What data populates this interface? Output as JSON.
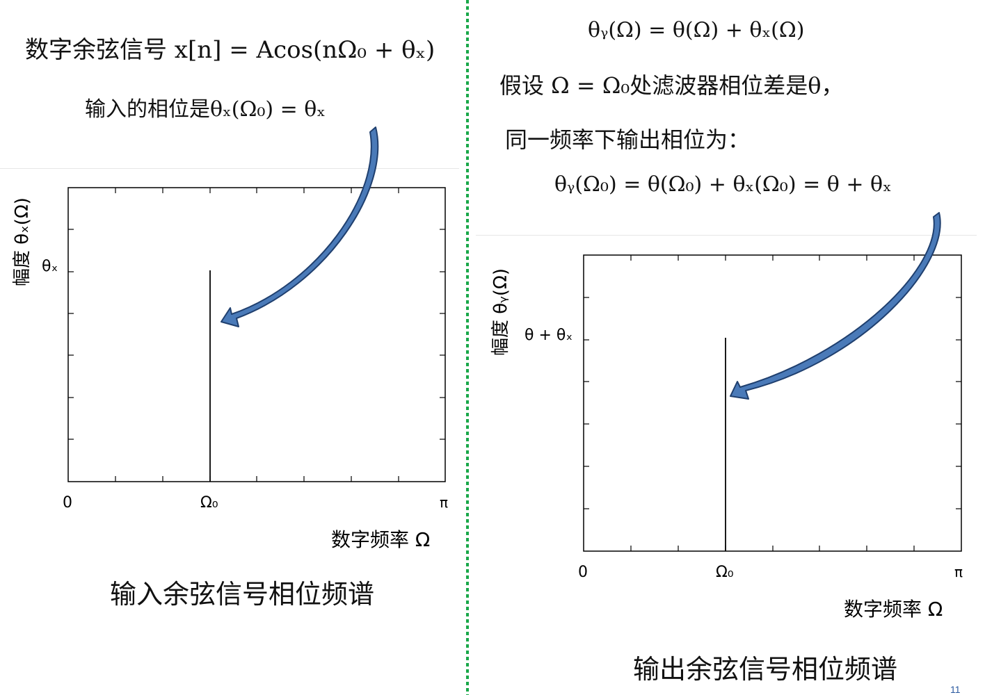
{
  "left": {
    "eq1": "数字余弦信号 x[n] = Acos(nΩ₀ + θₓ)",
    "eq2": "输入的相位是θₓ(Ω₀) = θₓ",
    "plot": {
      "y_axis_label": "幅度 θₓ(Ω)",
      "y_tick_label": "θₓ",
      "x_tick_labels": [
        "0",
        "Ω₀",
        "π"
      ],
      "x_axis_label": "数字频率 Ω"
    },
    "caption": "输入余弦信号相位频谱"
  },
  "right": {
    "eq1": "θᵧ(Ω) = θ(Ω) + θₓ(Ω)",
    "eq2": "假设 Ω = Ω₀处滤波器相位差是θ，",
    "eq3": "同一频率下输出相位为：",
    "eq4": "θᵧ(Ω₀) = θ(Ω₀) + θₓ(Ω₀) = θ + θₓ",
    "plot": {
      "y_axis_label": "幅度 θᵧ(Ω)",
      "y_tick_label": "θ + θₓ",
      "x_tick_labels": [
        "0",
        "Ω₀",
        "π"
      ],
      "x_axis_label": "数字频率 Ω"
    },
    "caption": "输出余弦信号相位频谱"
  },
  "page_number": "11",
  "colors": {
    "arrow_fill": "#4a7ab8",
    "arrow_stroke": "#1f3f6e",
    "divider": "#1aa84a"
  }
}
